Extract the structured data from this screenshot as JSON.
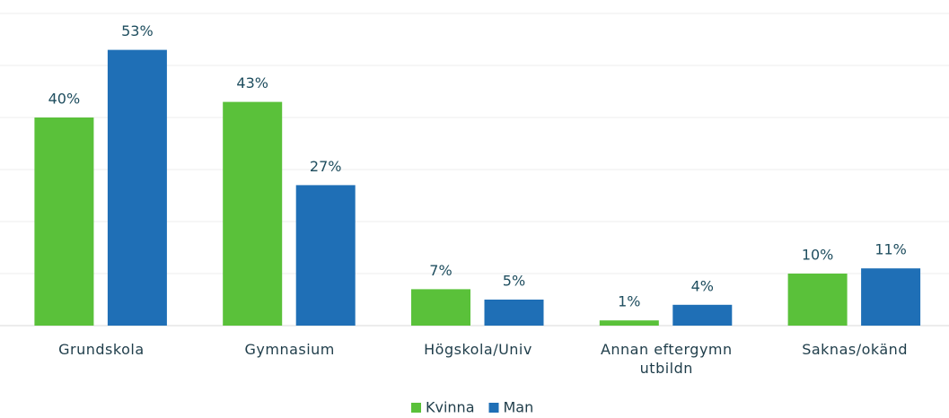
{
  "chart_data": {
    "type": "bar",
    "categories": [
      "Grundskola",
      "Gymnasium",
      "Högskola/Univ",
      "Annan eftergymn utbildn",
      "Saknas/okänd"
    ],
    "series": [
      {
        "name": "Kvinna",
        "color": "#5ac13a",
        "values": [
          40,
          43,
          7,
          1,
          10
        ],
        "value_labels": [
          "40%",
          "43%",
          "7%",
          "1%",
          "10%"
        ]
      },
      {
        "name": "Man",
        "color": "#1f6fb6",
        "values": [
          53,
          27,
          5,
          4,
          11
        ],
        "value_labels": [
          "53%",
          "27%",
          "5%",
          "4%",
          "11%"
        ]
      }
    ],
    "ylim": [
      0,
      60
    ],
    "yticks": [
      0,
      10,
      20,
      30,
      40,
      50,
      60
    ],
    "grid": true,
    "legend": "bottom"
  }
}
